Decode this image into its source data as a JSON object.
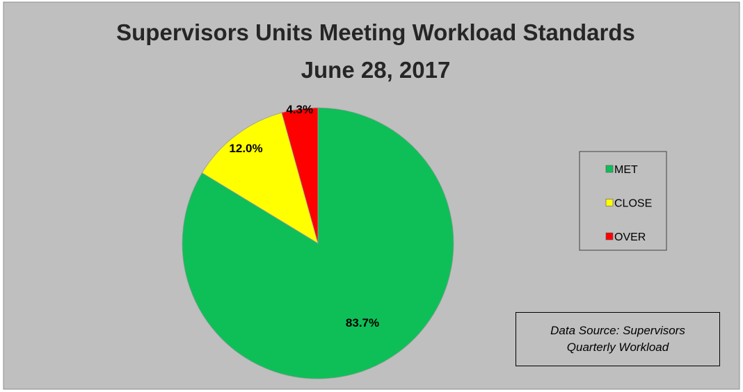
{
  "chart_data": {
    "type": "pie",
    "title": "Supervisors Units Meeting Workload Standards",
    "subtitle": "June 28, 2017",
    "categories": [
      "MET",
      "CLOSE",
      "OVER"
    ],
    "values": [
      83.7,
      12.0,
      4.3
    ],
    "value_labels": [
      "83.7%",
      "12.0%",
      "4.3%"
    ],
    "colors": [
      "#0ebf58",
      "#ffff00",
      "#ff0000"
    ],
    "legend": "right",
    "annotation": "Data Source: Supervisors Quarterly Workload"
  }
}
